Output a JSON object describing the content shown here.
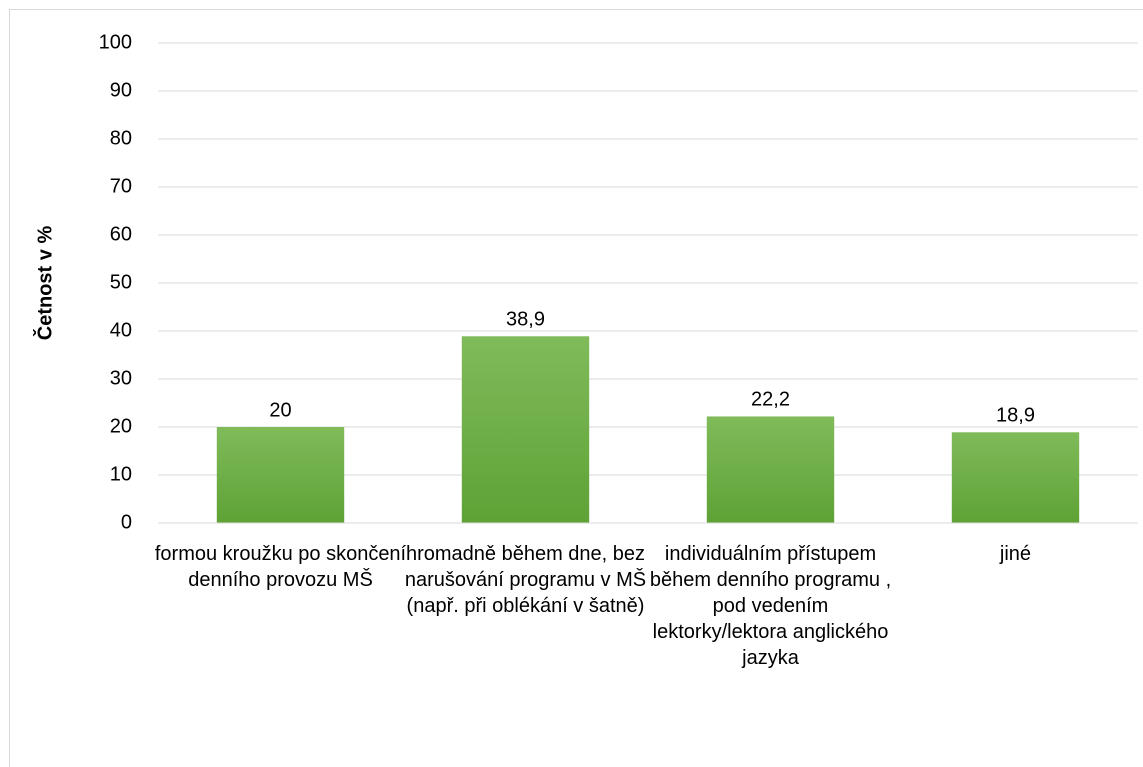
{
  "chart_data": {
    "type": "bar",
    "y_label": "Četnost v %",
    "categories": [
      "formou kroužku po skončení denního provozu MŠ",
      "hromadně během dne, bez narušování programu v MŠ (např. při oblékání v šatně)",
      "individuálním přístupem během denního programu , pod vedením lektorky/lektora anglického jazyka",
      "jiné"
    ],
    "values": [
      20,
      38.9,
      22.2,
      18.9
    ],
    "value_labels": [
      "20",
      "38,9",
      "22,2",
      "18,9"
    ],
    "color": "#6fae40",
    "ylim": [
      0,
      100
    ],
    "yticks": [
      0,
      10,
      20,
      30,
      40,
      50,
      60,
      70,
      80,
      90,
      100
    ],
    "grid": true
  }
}
